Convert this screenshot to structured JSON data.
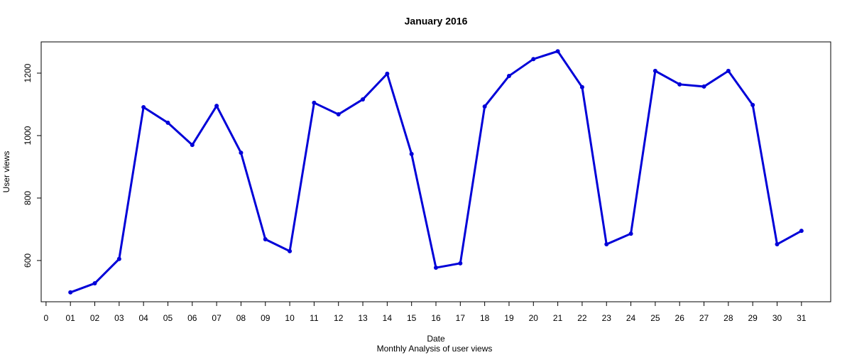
{
  "chart_data": {
    "type": "line",
    "title": "January 2016",
    "x_label": "Date",
    "y_label": "User views",
    "subtitle": "Monthly Analysis of user views",
    "x": [
      1,
      2,
      3,
      4,
      5,
      6,
      7,
      8,
      9,
      10,
      11,
      12,
      13,
      14,
      15,
      16,
      17,
      18,
      19,
      20,
      21,
      22,
      23,
      24,
      25,
      26,
      27,
      28,
      29,
      30,
      31
    ],
    "series": [
      {
        "name": "User views",
        "color": "#0000d8",
        "values": [
          498,
          527,
          605,
          1091,
          1041,
          970,
          1095,
          945,
          668,
          630,
          1105,
          1068,
          1116,
          1198,
          941,
          577,
          591,
          1093,
          1191,
          1245,
          1270,
          1155,
          652,
          686,
          1207,
          1164,
          1157,
          1207,
          1098,
          652,
          695
        ]
      }
    ],
    "xlim": [
      -0.2,
      32.2
    ],
    "xticks": [
      0,
      {
        "value": 1,
        "label": "01"
      },
      {
        "value": 2,
        "label": "02"
      },
      {
        "value": 3,
        "label": "03"
      },
      {
        "value": 4,
        "label": "04"
      },
      {
        "value": 5,
        "label": "05"
      },
      {
        "value": 6,
        "label": "06"
      },
      {
        "value": 7,
        "label": "07"
      },
      {
        "value": 8,
        "label": "08"
      },
      {
        "value": 9,
        "label": "09"
      },
      10,
      11,
      12,
      13,
      14,
      15,
      16,
      17,
      18,
      19,
      20,
      21,
      22,
      23,
      24,
      25,
      26,
      27,
      28,
      29,
      30,
      31
    ],
    "ylim": [
      468,
      1300
    ],
    "yticks": [
      600,
      800,
      1000,
      1200
    ],
    "grid": false
  }
}
